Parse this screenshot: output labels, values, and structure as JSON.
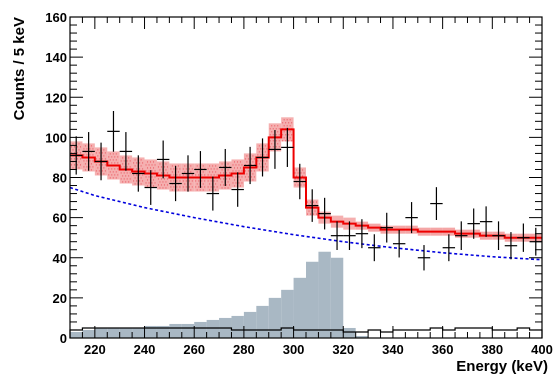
{
  "chart_data": {
    "type": "histogram",
    "xlabel": "Energy (keV)",
    "ylabel": "Counts / 5 keV",
    "xlim": [
      210,
      400
    ],
    "ylim": [
      0,
      160
    ],
    "x_ticks": [
      220,
      240,
      260,
      280,
      300,
      320,
      340,
      360,
      380,
      400
    ],
    "y_ticks": [
      0,
      20,
      40,
      60,
      80,
      100,
      120,
      140,
      160
    ],
    "bin_width": 5,
    "bin_edges": [
      210,
      215,
      220,
      225,
      230,
      235,
      240,
      245,
      250,
      255,
      260,
      265,
      270,
      275,
      280,
      285,
      290,
      295,
      300,
      305,
      310,
      315,
      320,
      325,
      330,
      335,
      340,
      345,
      350,
      355,
      360,
      365,
      370,
      375,
      380,
      385,
      390,
      395,
      400
    ],
    "series": [
      {
        "role": "data_points",
        "x": [
          212.5,
          217.5,
          222.5,
          227.5,
          232.5,
          237.5,
          242.5,
          247.5,
          252.5,
          257.5,
          262.5,
          267.5,
          272.5,
          277.5,
          282.5,
          287.5,
          292.5,
          297.5,
          302.5,
          307.5,
          312.5,
          317.5,
          322.5,
          327.5,
          332.5,
          337.5,
          342.5,
          347.5,
          352.5,
          357.5,
          362.5,
          367.5,
          372.5,
          377.5,
          382.5,
          387.5,
          392.5,
          397.5
        ],
        "y": [
          91,
          93,
          88,
          103,
          93,
          82,
          75,
          89,
          77,
          82,
          84,
          72,
          85,
          74,
          86,
          90,
          94,
          95,
          78,
          66,
          62,
          51,
          51,
          52,
          45,
          55,
          47,
          60,
          40,
          67,
          45,
          51,
          57,
          58,
          51,
          46,
          50,
          48
        ],
        "color": "#000000"
      },
      {
        "role": "fit_total",
        "values": [
          91,
          90,
          88,
          86,
          84,
          83,
          82,
          81,
          80,
          80,
          80,
          80,
          81,
          82,
          85,
          90,
          100,
          104,
          80,
          65,
          60,
          58,
          57,
          56,
          55,
          54,
          54,
          54,
          53,
          53,
          53,
          52,
          52,
          51,
          51,
          50,
          50,
          50
        ],
        "band_halfwidth": [
          7,
          7,
          7,
          7,
          7,
          7,
          7,
          7,
          7,
          7,
          7,
          7,
          7,
          7,
          7,
          7,
          7,
          6,
          5,
          4,
          3,
          3,
          3,
          2,
          2,
          2,
          2,
          2,
          2,
          2,
          2,
          2,
          2,
          2,
          2,
          2,
          2,
          2
        ],
        "color": "#ee0000",
        "band_color": "#f4a6a6"
      },
      {
        "role": "background_fit",
        "x": [
          210,
          220,
          240,
          260,
          280,
          300,
          320,
          340,
          360,
          380,
          400
        ],
        "y": [
          75,
          71,
          65,
          60,
          55.5,
          51.5,
          48,
          45,
          42.5,
          40.5,
          39
        ],
        "color": "#0000dd"
      },
      {
        "role": "filled_histogram",
        "values": [
          3,
          4,
          5,
          5,
          5,
          5,
          6,
          6,
          7,
          7,
          8,
          9,
          10,
          11,
          13,
          16,
          20,
          24,
          30,
          38,
          43,
          40,
          5,
          1,
          0,
          0,
          0,
          0,
          0,
          0,
          0,
          0,
          0,
          0,
          0,
          0,
          0,
          0
        ],
        "color": "#a9b8c4"
      },
      {
        "role": "outline_histogram",
        "values": [
          4,
          5,
          5,
          5,
          5,
          5,
          5,
          5,
          5,
          5,
          5,
          5,
          5,
          4,
          4,
          4,
          4,
          5,
          4,
          4,
          4,
          4,
          3,
          3,
          4,
          3,
          4,
          4,
          4,
          5,
          4,
          5,
          5,
          5,
          4,
          4,
          5,
          4
        ],
        "color": "#000000"
      }
    ]
  }
}
